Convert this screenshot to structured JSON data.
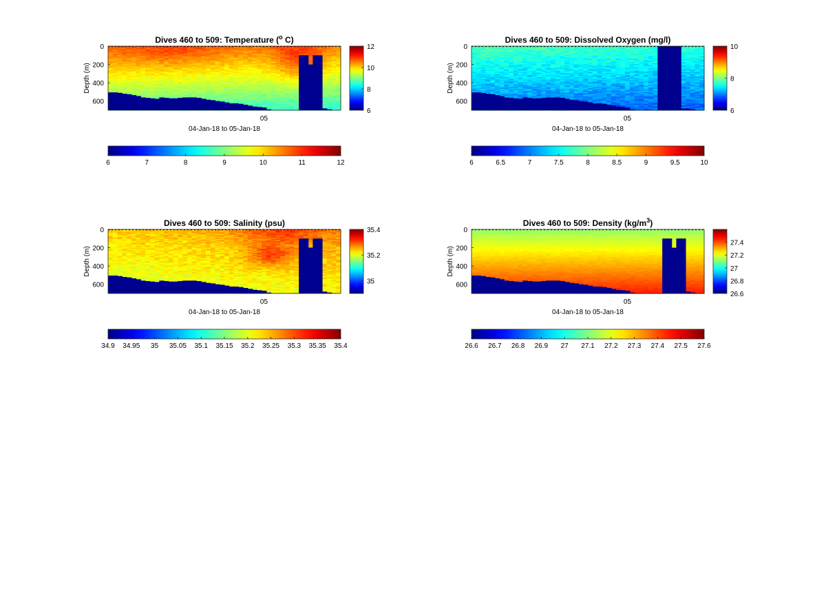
{
  "figure": {
    "colormap": "jet",
    "mask_color": "#00008F"
  },
  "chart_data": [
    {
      "type": "heatmap",
      "title": "Dives 460 to 509: Temperature (",
      "title_sup": "o",
      "title_tail": " C)",
      "ylabel": "Depth (m)",
      "xlabel": "04-Jan-18 to 05-Jan-18",
      "x_tick_label": "05",
      "y_ticks": [
        "0",
        "200",
        "400",
        "600"
      ],
      "ylim": [
        0,
        700
      ],
      "clim": [
        6,
        12
      ],
      "colorbar_ticks": [
        "6",
        "8",
        "10",
        "12"
      ],
      "colorbar_values": [
        6,
        8,
        10,
        12
      ],
      "h_colorbar_ticks": [
        "6",
        "7",
        "8",
        "9",
        "10",
        "11",
        "12"
      ],
      "h_colorbar_values": [
        6,
        7,
        8,
        9,
        10,
        11,
        12
      ],
      "field": {
        "surface": 10.6,
        "bottom": 8.6,
        "x_trend": -0.25,
        "noise": 0.35,
        "patches": [
          {
            "x": 0.82,
            "z": 0.25,
            "rx": 0.1,
            "rz": 0.35,
            "dv": 0.7
          },
          {
            "x": 0.3,
            "z": 0.1,
            "rx": 0.18,
            "rz": 0.25,
            "dv": 0.3
          }
        ]
      },
      "seafloor_depth": [
        505,
        505,
        510,
        520,
        525,
        535,
        545,
        560,
        565,
        570,
        575,
        560,
        565,
        570,
        570,
        565,
        560,
        560,
        560,
        565,
        575,
        585,
        590,
        600,
        605,
        615,
        625,
        625,
        630,
        640,
        650,
        660,
        665,
        670,
        690,
        700,
        700,
        700,
        700,
        700,
        700,
        700,
        700,
        700,
        700,
        680,
        680,
        690,
        700,
        700
      ],
      "gap_top_depth": [
        null,
        null,
        null,
        null,
        null,
        null,
        null,
        null,
        null,
        null,
        null,
        null,
        null,
        null,
        null,
        null,
        null,
        null,
        null,
        null,
        null,
        null,
        null,
        null,
        null,
        null,
        null,
        null,
        null,
        null,
        null,
        null,
        null,
        null,
        null,
        null,
        null,
        null,
        null,
        null,
        null,
        100,
        100,
        200,
        100,
        100,
        null,
        null,
        null,
        null
      ]
    },
    {
      "type": "heatmap",
      "title": "Dives 460 to 509: Dissolved Oxygen (mg/l)",
      "title_sup": "",
      "title_tail": "",
      "ylabel": "Depth (m)",
      "xlabel": "04-Jan-18 to 05-Jan-18",
      "x_tick_label": "05",
      "y_ticks": [
        "0",
        "200",
        "400",
        "600"
      ],
      "ylim": [
        0,
        700
      ],
      "clim": [
        6,
        10
      ],
      "colorbar_ticks": [
        "6",
        "8",
        "10"
      ],
      "colorbar_values": [
        6,
        8,
        10
      ],
      "h_colorbar_ticks": [
        "6",
        "6.5",
        "7",
        "7.5",
        "8",
        "8.5",
        "9",
        "9.5",
        "10"
      ],
      "h_colorbar_values": [
        6,
        6.5,
        7,
        7.5,
        8,
        8.5,
        9,
        9.5,
        10
      ],
      "field": {
        "surface": 7.75,
        "bottom": 6.9,
        "x_trend": -0.1,
        "noise": 0.35,
        "patches": []
      },
      "seafloor_depth": [
        505,
        505,
        510,
        520,
        525,
        535,
        545,
        560,
        565,
        570,
        575,
        560,
        565,
        570,
        570,
        565,
        560,
        560,
        560,
        565,
        575,
        585,
        590,
        600,
        605,
        615,
        625,
        625,
        630,
        640,
        650,
        660,
        665,
        670,
        690,
        700,
        700,
        700,
        700,
        700,
        700,
        700,
        700,
        700,
        700,
        680,
        680,
        690,
        700,
        700
      ],
      "gap_top_depth": [
        null,
        null,
        null,
        null,
        null,
        null,
        null,
        null,
        null,
        null,
        null,
        null,
        null,
        null,
        null,
        null,
        null,
        null,
        null,
        null,
        null,
        null,
        null,
        null,
        null,
        null,
        null,
        null,
        null,
        null,
        null,
        null,
        null,
        null,
        null,
        null,
        null,
        null,
        null,
        null,
        0,
        0,
        0,
        0,
        0,
        null,
        null,
        null,
        null,
        null
      ]
    },
    {
      "type": "heatmap",
      "title": "Dives 460 to 509: Salinity (psu)",
      "title_sup": "",
      "title_tail": "",
      "ylabel": "Depth (m)",
      "xlabel": "04-Jan-18 to 05-Jan-18",
      "x_tick_label": "05",
      "y_ticks": [
        "0",
        "200",
        "400",
        "600"
      ],
      "ylim": [
        0,
        700
      ],
      "clim": [
        34.9,
        35.4
      ],
      "colorbar_ticks": [
        "35",
        "35.2",
        "35.4"
      ],
      "colorbar_values": [
        35,
        35.2,
        35.4
      ],
      "h_colorbar_ticks": [
        "34.9",
        "34.95",
        "35",
        "35.05",
        "35.1",
        "35.15",
        "35.2",
        "35.25",
        "35.3",
        "35.35",
        "35.4"
      ],
      "h_colorbar_values": [
        34.9,
        34.95,
        35,
        35.05,
        35.1,
        35.15,
        35.2,
        35.25,
        35.3,
        35.35,
        35.4
      ],
      "field": {
        "surface": 35.25,
        "bottom": 35.2,
        "x_trend": 0.03,
        "noise": 0.04,
        "patches": [
          {
            "x": 0.7,
            "z": 0.4,
            "rx": 0.1,
            "rz": 0.18,
            "dv": 0.07
          },
          {
            "x": 0.75,
            "z": 0.05,
            "rx": 0.2,
            "rz": 0.15,
            "dv": 0.05
          }
        ]
      },
      "seafloor_depth": [
        505,
        505,
        510,
        520,
        525,
        535,
        545,
        560,
        565,
        570,
        575,
        560,
        565,
        570,
        570,
        565,
        560,
        560,
        560,
        565,
        575,
        585,
        590,
        600,
        605,
        615,
        625,
        625,
        630,
        640,
        650,
        660,
        665,
        670,
        690,
        700,
        700,
        700,
        700,
        700,
        700,
        700,
        700,
        700,
        700,
        680,
        680,
        690,
        700,
        700
      ],
      "gap_top_depth": [
        null,
        null,
        null,
        null,
        null,
        null,
        null,
        null,
        null,
        null,
        null,
        null,
        null,
        null,
        null,
        null,
        null,
        null,
        null,
        null,
        null,
        null,
        null,
        null,
        null,
        null,
        null,
        null,
        null,
        null,
        null,
        null,
        null,
        null,
        null,
        null,
        null,
        null,
        null,
        null,
        null,
        100,
        100,
        200,
        100,
        100,
        null,
        null,
        null,
        null
      ]
    },
    {
      "type": "heatmap",
      "title": "Dives 460 to 509: Density (kg/m",
      "title_sup": "3",
      "title_tail": ")",
      "ylabel": "Depth (m)",
      "xlabel": "04-Jan-18 to 05-Jan-18",
      "x_tick_label": "05",
      "y_ticks": [
        "0",
        "200",
        "400",
        "600"
      ],
      "ylim": [
        0,
        700
      ],
      "clim": [
        26.6,
        27.6
      ],
      "colorbar_ticks": [
        "26.6",
        "26.8",
        "27",
        "27.2",
        "27.4"
      ],
      "colorbar_values": [
        26.6,
        26.8,
        27,
        27.2,
        27.4
      ],
      "h_colorbar_ticks": [
        "26.6",
        "26.7",
        "26.8",
        "26.9",
        "27",
        "27.1",
        "27.2",
        "27.3",
        "27.4",
        "27.5",
        "27.6"
      ],
      "h_colorbar_values": [
        26.6,
        26.7,
        26.8,
        26.9,
        27,
        27.1,
        27.2,
        27.3,
        27.4,
        27.5,
        27.6
      ],
      "field": {
        "surface": 27.12,
        "bottom": 27.45,
        "x_trend": 0.0,
        "noise": 0.02,
        "patches": []
      },
      "seafloor_depth": [
        505,
        505,
        510,
        520,
        525,
        535,
        545,
        560,
        565,
        570,
        575,
        560,
        565,
        570,
        570,
        565,
        560,
        560,
        560,
        565,
        575,
        585,
        590,
        600,
        605,
        615,
        625,
        625,
        630,
        640,
        650,
        660,
        665,
        670,
        690,
        700,
        700,
        700,
        700,
        700,
        700,
        700,
        700,
        700,
        700,
        680,
        680,
        690,
        700,
        700
      ],
      "gap_top_depth": [
        null,
        null,
        null,
        null,
        null,
        null,
        null,
        null,
        null,
        null,
        null,
        null,
        null,
        null,
        null,
        null,
        null,
        null,
        null,
        null,
        null,
        null,
        null,
        null,
        null,
        null,
        null,
        null,
        null,
        null,
        null,
        null,
        null,
        null,
        null,
        null,
        null,
        null,
        null,
        null,
        null,
        100,
        100,
        200,
        100,
        100,
        null,
        null,
        null,
        null
      ]
    }
  ]
}
